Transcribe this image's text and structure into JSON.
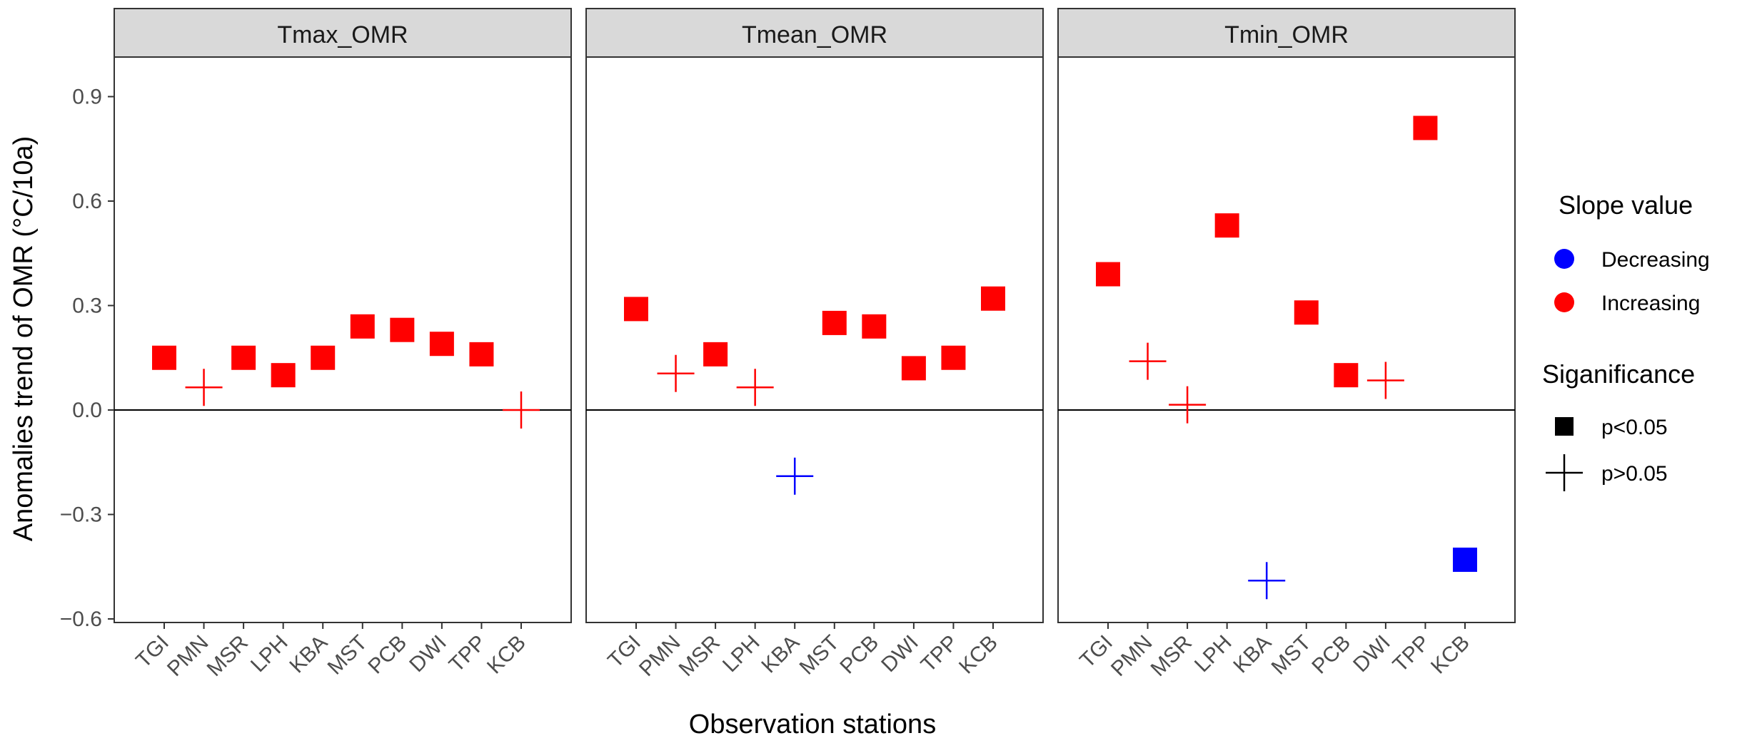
{
  "chart_data": {
    "type": "scatter",
    "title": "",
    "xlabel": "Observation stations",
    "ylabel": "Anomalies trend of OMR (°C/10a)",
    "ylim": [
      -0.6,
      1.0
    ],
    "yticks": [
      -0.6,
      -0.3,
      0.0,
      0.3,
      0.6,
      0.9
    ],
    "ytick_labels": [
      "−0.6",
      "−0.3",
      "0.0",
      "0.3",
      "0.6",
      "0.9"
    ],
    "reference_line": 0.0,
    "categories": [
      "TGI",
      "PMN",
      "MSR",
      "LPH",
      "KBA",
      "MST",
      "PCB",
      "DWI",
      "TPP",
      "KCB"
    ],
    "facets": [
      {
        "name": "Tmax_OMR",
        "points": [
          {
            "station": "TGI",
            "value": 0.15,
            "slope": "Increasing",
            "significance": "p<0.05"
          },
          {
            "station": "PMN",
            "value": 0.065,
            "slope": "Increasing",
            "significance": "p>0.05"
          },
          {
            "station": "MSR",
            "value": 0.15,
            "slope": "Increasing",
            "significance": "p<0.05"
          },
          {
            "station": "LPH",
            "value": 0.1,
            "slope": "Increasing",
            "significance": "p<0.05"
          },
          {
            "station": "KBA",
            "value": 0.15,
            "slope": "Increasing",
            "significance": "p<0.05"
          },
          {
            "station": "MST",
            "value": 0.24,
            "slope": "Increasing",
            "significance": "p<0.05"
          },
          {
            "station": "PCB",
            "value": 0.23,
            "slope": "Increasing",
            "significance": "p<0.05"
          },
          {
            "station": "DWI",
            "value": 0.19,
            "slope": "Increasing",
            "significance": "p<0.05"
          },
          {
            "station": "TPP",
            "value": 0.16,
            "slope": "Increasing",
            "significance": "p<0.05"
          },
          {
            "station": "KCB",
            "value": 0.0,
            "slope": "Increasing",
            "significance": "p>0.05"
          }
        ]
      },
      {
        "name": "Tmean_OMR",
        "points": [
          {
            "station": "TGI",
            "value": 0.29,
            "slope": "Increasing",
            "significance": "p<0.05"
          },
          {
            "station": "PMN",
            "value": 0.105,
            "slope": "Increasing",
            "significance": "p>0.05"
          },
          {
            "station": "MSR",
            "value": 0.16,
            "slope": "Increasing",
            "significance": "p<0.05"
          },
          {
            "station": "LPH",
            "value": 0.065,
            "slope": "Increasing",
            "significance": "p>0.05"
          },
          {
            "station": "KBA",
            "value": -0.19,
            "slope": "Decreasing",
            "significance": "p>0.05"
          },
          {
            "station": "MST",
            "value": 0.25,
            "slope": "Increasing",
            "significance": "p<0.05"
          },
          {
            "station": "PCB",
            "value": 0.24,
            "slope": "Increasing",
            "significance": "p<0.05"
          },
          {
            "station": "DWI",
            "value": 0.12,
            "slope": "Increasing",
            "significance": "p<0.05"
          },
          {
            "station": "TPP",
            "value": 0.15,
            "slope": "Increasing",
            "significance": "p<0.05"
          },
          {
            "station": "KCB",
            "value": 0.32,
            "slope": "Increasing",
            "significance": "p<0.05"
          }
        ]
      },
      {
        "name": "Tmin_OMR",
        "points": [
          {
            "station": "TGI",
            "value": 0.39,
            "slope": "Increasing",
            "significance": "p<0.05"
          },
          {
            "station": "PMN",
            "value": 0.14,
            "slope": "Increasing",
            "significance": "p>0.05"
          },
          {
            "station": "MSR",
            "value": 0.015,
            "slope": "Increasing",
            "significance": "p>0.05"
          },
          {
            "station": "LPH",
            "value": 0.53,
            "slope": "Increasing",
            "significance": "p<0.05"
          },
          {
            "station": "KBA",
            "value": -0.49,
            "slope": "Decreasing",
            "significance": "p>0.05"
          },
          {
            "station": "MST",
            "value": 0.28,
            "slope": "Increasing",
            "significance": "p<0.05"
          },
          {
            "station": "PCB",
            "value": 0.1,
            "slope": "Increasing",
            "significance": "p<0.05"
          },
          {
            "station": "DWI",
            "value": 0.085,
            "slope": "Increasing",
            "significance": "p>0.05"
          },
          {
            "station": "TPP",
            "value": 0.81,
            "slope": "Increasing",
            "significance": "p<0.05"
          },
          {
            "station": "KCB",
            "value": -0.43,
            "slope": "Decreasing",
            "significance": "p<0.05"
          }
        ]
      }
    ],
    "legend": {
      "position": "right",
      "color_title": "Slope value",
      "color_entries": [
        {
          "label": "Decreasing",
          "color": "#0000ff"
        },
        {
          "label": "Increasing",
          "color": "#ff0000"
        }
      ],
      "shape_title": "Siganificance",
      "shape_entries": [
        {
          "label": "p<0.05",
          "shape": "square"
        },
        {
          "label": "p>0.05",
          "shape": "cross"
        }
      ]
    }
  },
  "colors": {
    "increasing": "#ff0000",
    "decreasing": "#0000ff",
    "strip_bg": "#d9d9d9",
    "panel_border": "#333333",
    "tick_text": "#4d4d4d"
  }
}
